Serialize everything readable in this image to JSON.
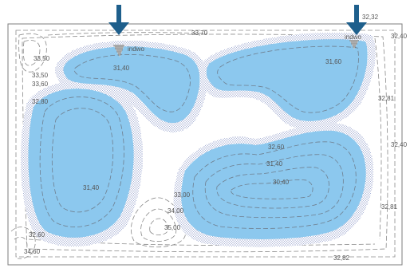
{
  "colors": {
    "water": "#8cc8ee",
    "arrow": "#1e5f8c",
    "contour": "#8a8a8a",
    "border": "#7d7d7d",
    "stipple": "#3a4fa0"
  },
  "inlets": [
    {
      "name": "inlet-left",
      "label": "indwo",
      "icon": "down-arrow-icon"
    },
    {
      "name": "inlet-right",
      "label": "indwo",
      "icon": "down-arrow-icon"
    }
  ],
  "elevations": [
    {
      "id": "e1",
      "label": "32,32"
    },
    {
      "id": "e2",
      "label": "32,40"
    },
    {
      "id": "e3",
      "label": "33,70"
    },
    {
      "id": "e4",
      "label": "33,50"
    },
    {
      "id": "e5",
      "label": "33,50"
    },
    {
      "id": "e6",
      "label": "33,60"
    },
    {
      "id": "e7",
      "label": "32,80"
    },
    {
      "id": "e8",
      "label": "31,40"
    },
    {
      "id": "e9",
      "label": "31,60"
    },
    {
      "id": "e10",
      "label": "32,81"
    },
    {
      "id": "e11",
      "label": "32,40"
    },
    {
      "id": "e12",
      "label": "32,60"
    },
    {
      "id": "e13",
      "label": "31,40"
    },
    {
      "id": "e14",
      "label": "30,40"
    },
    {
      "id": "e15",
      "label": "31,40"
    },
    {
      "id": "e16",
      "label": "33,00"
    },
    {
      "id": "e17",
      "label": "34,00"
    },
    {
      "id": "e18",
      "label": "35,00"
    },
    {
      "id": "e19",
      "label": "32,81"
    },
    {
      "id": "e20",
      "label": "32,82"
    },
    {
      "id": "e21",
      "label": "32,60"
    },
    {
      "id": "e22",
      "label": "34,60"
    }
  ]
}
